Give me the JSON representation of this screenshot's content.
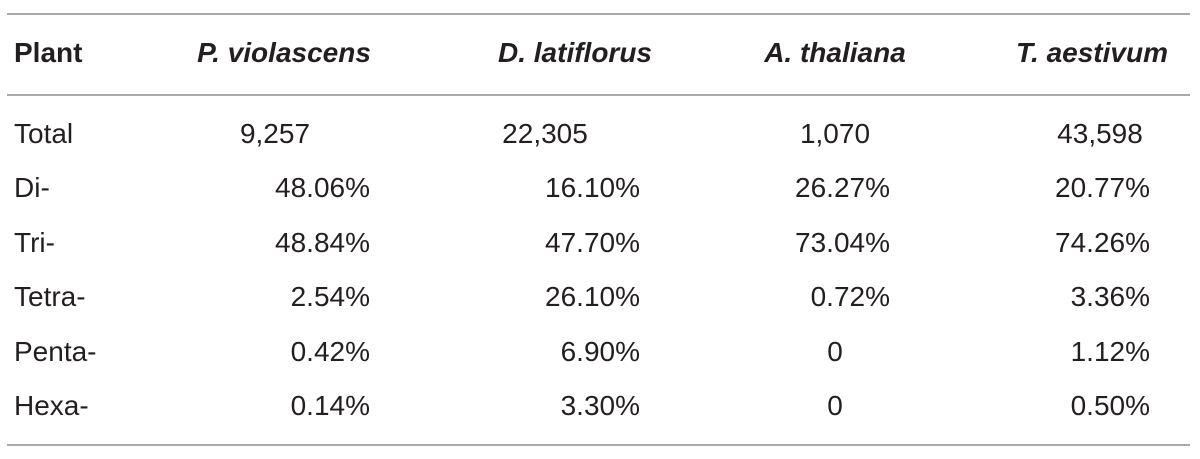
{
  "table": {
    "headers": [
      "Plant",
      "P. violascens",
      "D. latiflorus",
      "A. thaliana",
      "T. aestivum"
    ],
    "rows": [
      [
        "Total",
        "9,257",
        "22,305",
        "1,070",
        "43,598"
      ],
      [
        "Di-",
        "48.06%",
        "16.10%",
        "26.27%",
        "20.77%"
      ],
      [
        "Tri-",
        "48.84%",
        "47.70%",
        "73.04%",
        "74.26%"
      ],
      [
        "Tetra-",
        "2.54%",
        "26.10%",
        "0.72%",
        "3.36%"
      ],
      [
        "Penta-",
        "0.42%",
        "6.90%",
        "0",
        "1.12%"
      ],
      [
        "Hexa-",
        "0.14%",
        "3.30%",
        "0",
        "0.50%"
      ]
    ]
  }
}
